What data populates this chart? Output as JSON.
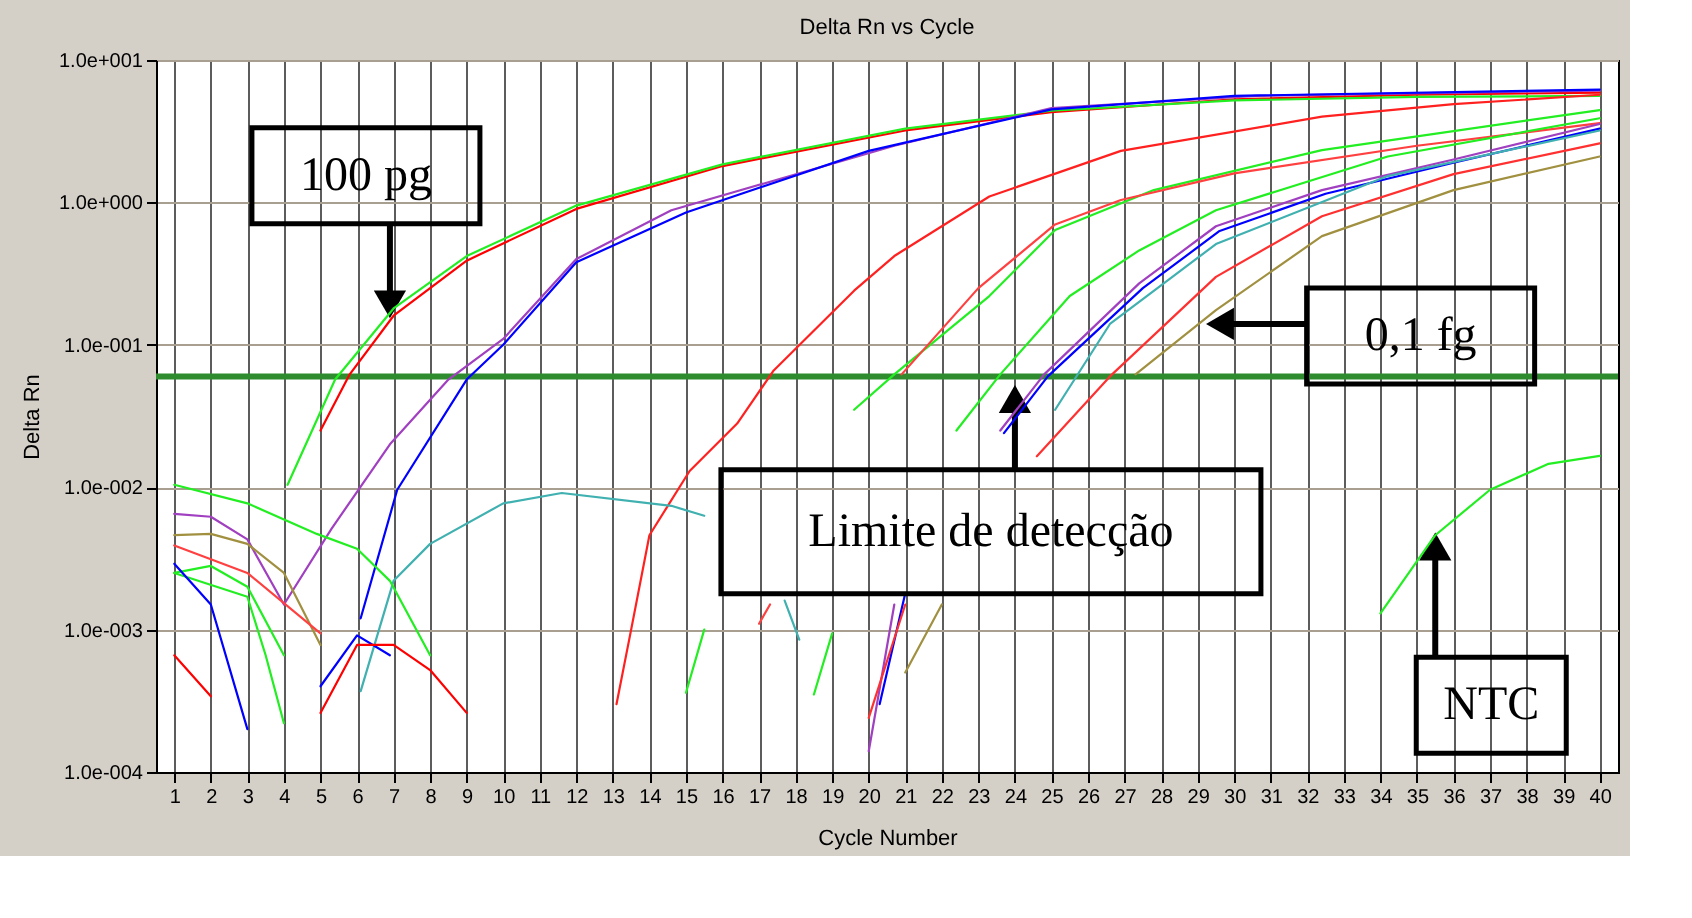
{
  "chart_data": {
    "type": "line",
    "title": "Delta Rn vs Cycle",
    "xlabel": "Cycle Number",
    "ylabel": "Delta Rn",
    "log": "y",
    "grid": true,
    "legend": false,
    "marker": "none",
    "line_style": "solid",
    "xlim": [
      0.5,
      40.5
    ],
    "xticks": [
      1,
      2,
      3,
      4,
      5,
      6,
      7,
      8,
      9,
      10,
      11,
      12,
      13,
      14,
      15,
      16,
      17,
      18,
      19,
      20,
      21,
      22,
      23,
      24,
      25,
      26,
      27,
      28,
      29,
      30,
      31,
      32,
      33,
      34,
      35,
      36,
      37,
      38,
      39,
      40
    ],
    "ylim": [
      0.0001,
      10
    ],
    "yticks": [
      {
        "value": 0.0001,
        "label": "1.0e-004"
      },
      {
        "value": 0.001,
        "label": "1.0e-003"
      },
      {
        "value": 0.01,
        "label": "1.0e-002"
      },
      {
        "value": 0.1,
        "label": "1.0e-001"
      },
      {
        "value": 1,
        "label": "1.0e+000"
      },
      {
        "value": 10,
        "label": "1.0e+001"
      }
    ],
    "ref_lines": [
      {
        "axis": "y",
        "value": 0.06,
        "color": "#2e8b2e"
      }
    ],
    "annotations": [
      {
        "text": "100 pg",
        "x": 6.9,
        "y": 0.16
      },
      {
        "text": "0,1 fg",
        "x": 29.3,
        "y": 0.14
      },
      {
        "text": "Limite de detecção",
        "x": 24,
        "y": 0.05
      },
      {
        "text": "NTC",
        "x": 35.5,
        "y": 0.0046
      }
    ],
    "series": [
      {
        "color": "#ff0000",
        "x": [
          5,
          5.8,
          7,
          9,
          12,
          16,
          21,
          25,
          30,
          35,
          40
        ],
        "values": [
          0.025,
          0.062,
          0.16,
          0.39,
          0.9,
          1.8,
          3.2,
          4.3,
          5.3,
          5.7,
          5.9
        ]
      },
      {
        "color": "#22ee22",
        "x": [
          4.1,
          5.4,
          7,
          9,
          12,
          16,
          21,
          25,
          30,
          35,
          40
        ],
        "values": [
          0.0104,
          0.057,
          0.18,
          0.42,
          0.95,
          1.85,
          3.3,
          4.4,
          5.2,
          5.5,
          5.6
        ]
      },
      {
        "color": "#a040c0",
        "x": [
          1,
          2,
          3,
          4,
          5.3,
          6.9,
          8.5,
          10,
          12,
          14.6,
          20.7,
          25,
          30.6,
          40
        ],
        "values": [
          0.0065,
          0.0062,
          0.0043,
          0.0015,
          0.0051,
          0.02,
          0.057,
          0.11,
          0.4,
          0.88,
          2.5,
          4.6,
          5.6,
          6.1
        ]
      },
      {
        "color": "#0000ff",
        "x": [
          6.1,
          7.1,
          9,
          10,
          12,
          15,
          20,
          25,
          30,
          40
        ],
        "values": [
          0.0012,
          0.0096,
          0.057,
          0.1,
          0.38,
          0.85,
          2.3,
          4.5,
          5.6,
          6.2
        ]
      },
      {
        "color": "#ff2020",
        "x": [
          13.1,
          13.5,
          14,
          15.1,
          16.4,
          17.4,
          19.6,
          20.7,
          23.3,
          26.9,
          32.4,
          36,
          40
        ],
        "values": [
          0.0003,
          0.001,
          0.0046,
          0.013,
          0.028,
          0.066,
          0.24,
          0.42,
          1.1,
          2.3,
          4.0,
          4.9,
          5.7
        ]
      },
      {
        "color": "#22ee22",
        "x": [
          15,
          15.5,
          17,
          18,
          19.6,
          20.7,
          23.3,
          25.1,
          27.8,
          32.4,
          40
        ],
        "values": [
          0.00036,
          0.001,
          null,
          null,
          0.035,
          0.062,
          0.22,
          0.64,
          1.22,
          2.33,
          4.45
        ]
      },
      {
        "color": "#ff4040",
        "x": [
          17,
          17.3,
          18,
          19,
          20.9,
          23,
          25.1,
          26.9,
          30,
          35,
          40
        ],
        "values": [
          0.0011,
          0.0015,
          null,
          null,
          0.062,
          0.25,
          0.7,
          1.04,
          1.6,
          2.5,
          3.6
        ]
      },
      {
        "color": "#22ee22",
        "x": [
          18.5,
          19,
          20.5,
          22.4,
          23.6,
          25.5,
          27.4,
          29.5,
          34.2,
          40
        ],
        "values": [
          0.00035,
          0.00094,
          null,
          0.025,
          0.062,
          0.22,
          0.46,
          0.88,
          2.1,
          3.9
        ]
      },
      {
        "color": "#a040c0",
        "x": [
          20,
          20.7,
          22.5,
          23.6,
          24.8,
          27.4,
          29.5,
          32.4,
          36,
          40
        ],
        "values": [
          0.00014,
          0.0015,
          null,
          0.025,
          0.062,
          0.27,
          0.68,
          1.22,
          2.0,
          3.55
        ]
      },
      {
        "color": "#0000ff",
        "x": [
          20.3,
          21,
          22.6,
          23.7,
          24.9,
          27.5,
          29.6,
          32.5,
          36,
          40
        ],
        "values": [
          0.0003,
          0.0018,
          null,
          0.024,
          0.06,
          0.25,
          0.63,
          1.15,
          1.9,
          3.3
        ]
      },
      {
        "color": "#40b0b0",
        "x": [
          25.1,
          26.6,
          29.5,
          34.2,
          40
        ],
        "values": [
          0.035,
          0.14,
          0.51,
          1.53,
          3.2
        ]
      },
      {
        "color": "#ff3030",
        "x": [
          20,
          21,
          23,
          24.6,
          26.6,
          29.5,
          32.4,
          36,
          40
        ],
        "values": [
          0.00024,
          0.0015,
          null,
          0.0165,
          0.06,
          0.3,
          0.8,
          1.58,
          2.6
        ]
      },
      {
        "color": "#a09040",
        "x": [
          21,
          22,
          24.4,
          27.3,
          29.5,
          32.4,
          36,
          40
        ],
        "values": [
          0.0005,
          0.0015,
          null,
          0.062,
          0.175,
          0.58,
          1.22,
          2.1
        ]
      },
      {
        "color": "#22ee22",
        "x": [
          34,
          35.5,
          37,
          38.6,
          40
        ],
        "values": [
          0.0013,
          0.0046,
          0.0096,
          0.0146,
          0.0166
        ]
      },
      {
        "color": "#40b0b0",
        "x": [
          6.1,
          7,
          8,
          10,
          11.6,
          14.6,
          15.5,
          17,
          17.7,
          18.1
        ],
        "values": [
          0.00037,
          0.0022,
          0.004,
          0.0077,
          0.0091,
          0.0074,
          0.0063,
          null,
          0.0016,
          0.00085
        ]
      },
      {
        "color": "#22ee22",
        "x": [
          1,
          3,
          4.9,
          6,
          6.9,
          8
        ],
        "values": [
          0.0104,
          0.0077,
          0.0047,
          0.0037,
          0.0022,
          0.00066
        ]
      },
      {
        "color": "#a09040",
        "x": [
          1,
          2,
          3,
          4,
          5
        ],
        "values": [
          0.0046,
          0.0047,
          0.004,
          0.0025,
          0.00078
        ]
      },
      {
        "color": "#ff4040",
        "x": [
          1,
          3,
          5
        ],
        "values": [
          0.0039,
          0.0025,
          0.00094
        ]
      },
      {
        "color": "#22ee22",
        "x": [
          1,
          2,
          3,
          4
        ],
        "values": [
          0.0025,
          0.0028,
          0.002,
          0.00066
        ]
      },
      {
        "color": "#22ee22",
        "x": [
          1,
          3,
          3.5,
          4
        ],
        "values": [
          0.0025,
          0.0017,
          0.00066,
          0.00022
        ]
      },
      {
        "color": "#ff0000",
        "x": [
          1,
          2
        ],
        "values": [
          0.00066,
          0.00034
        ]
      },
      {
        "color": "#0000ff",
        "x": [
          1,
          2,
          3
        ],
        "values": [
          0.0029,
          0.0015,
          0.0002
        ]
      },
      {
        "color": "#0000ff",
        "x": [
          5,
          6,
          6.9
        ],
        "values": [
          0.0004,
          0.00091,
          0.00066
        ]
      },
      {
        "color": "#ff0000",
        "x": [
          5,
          6,
          7,
          8,
          9
        ],
        "values": [
          0.00026,
          0.00078,
          0.00078,
          0.00052,
          0.00026
        ]
      }
    ]
  }
}
